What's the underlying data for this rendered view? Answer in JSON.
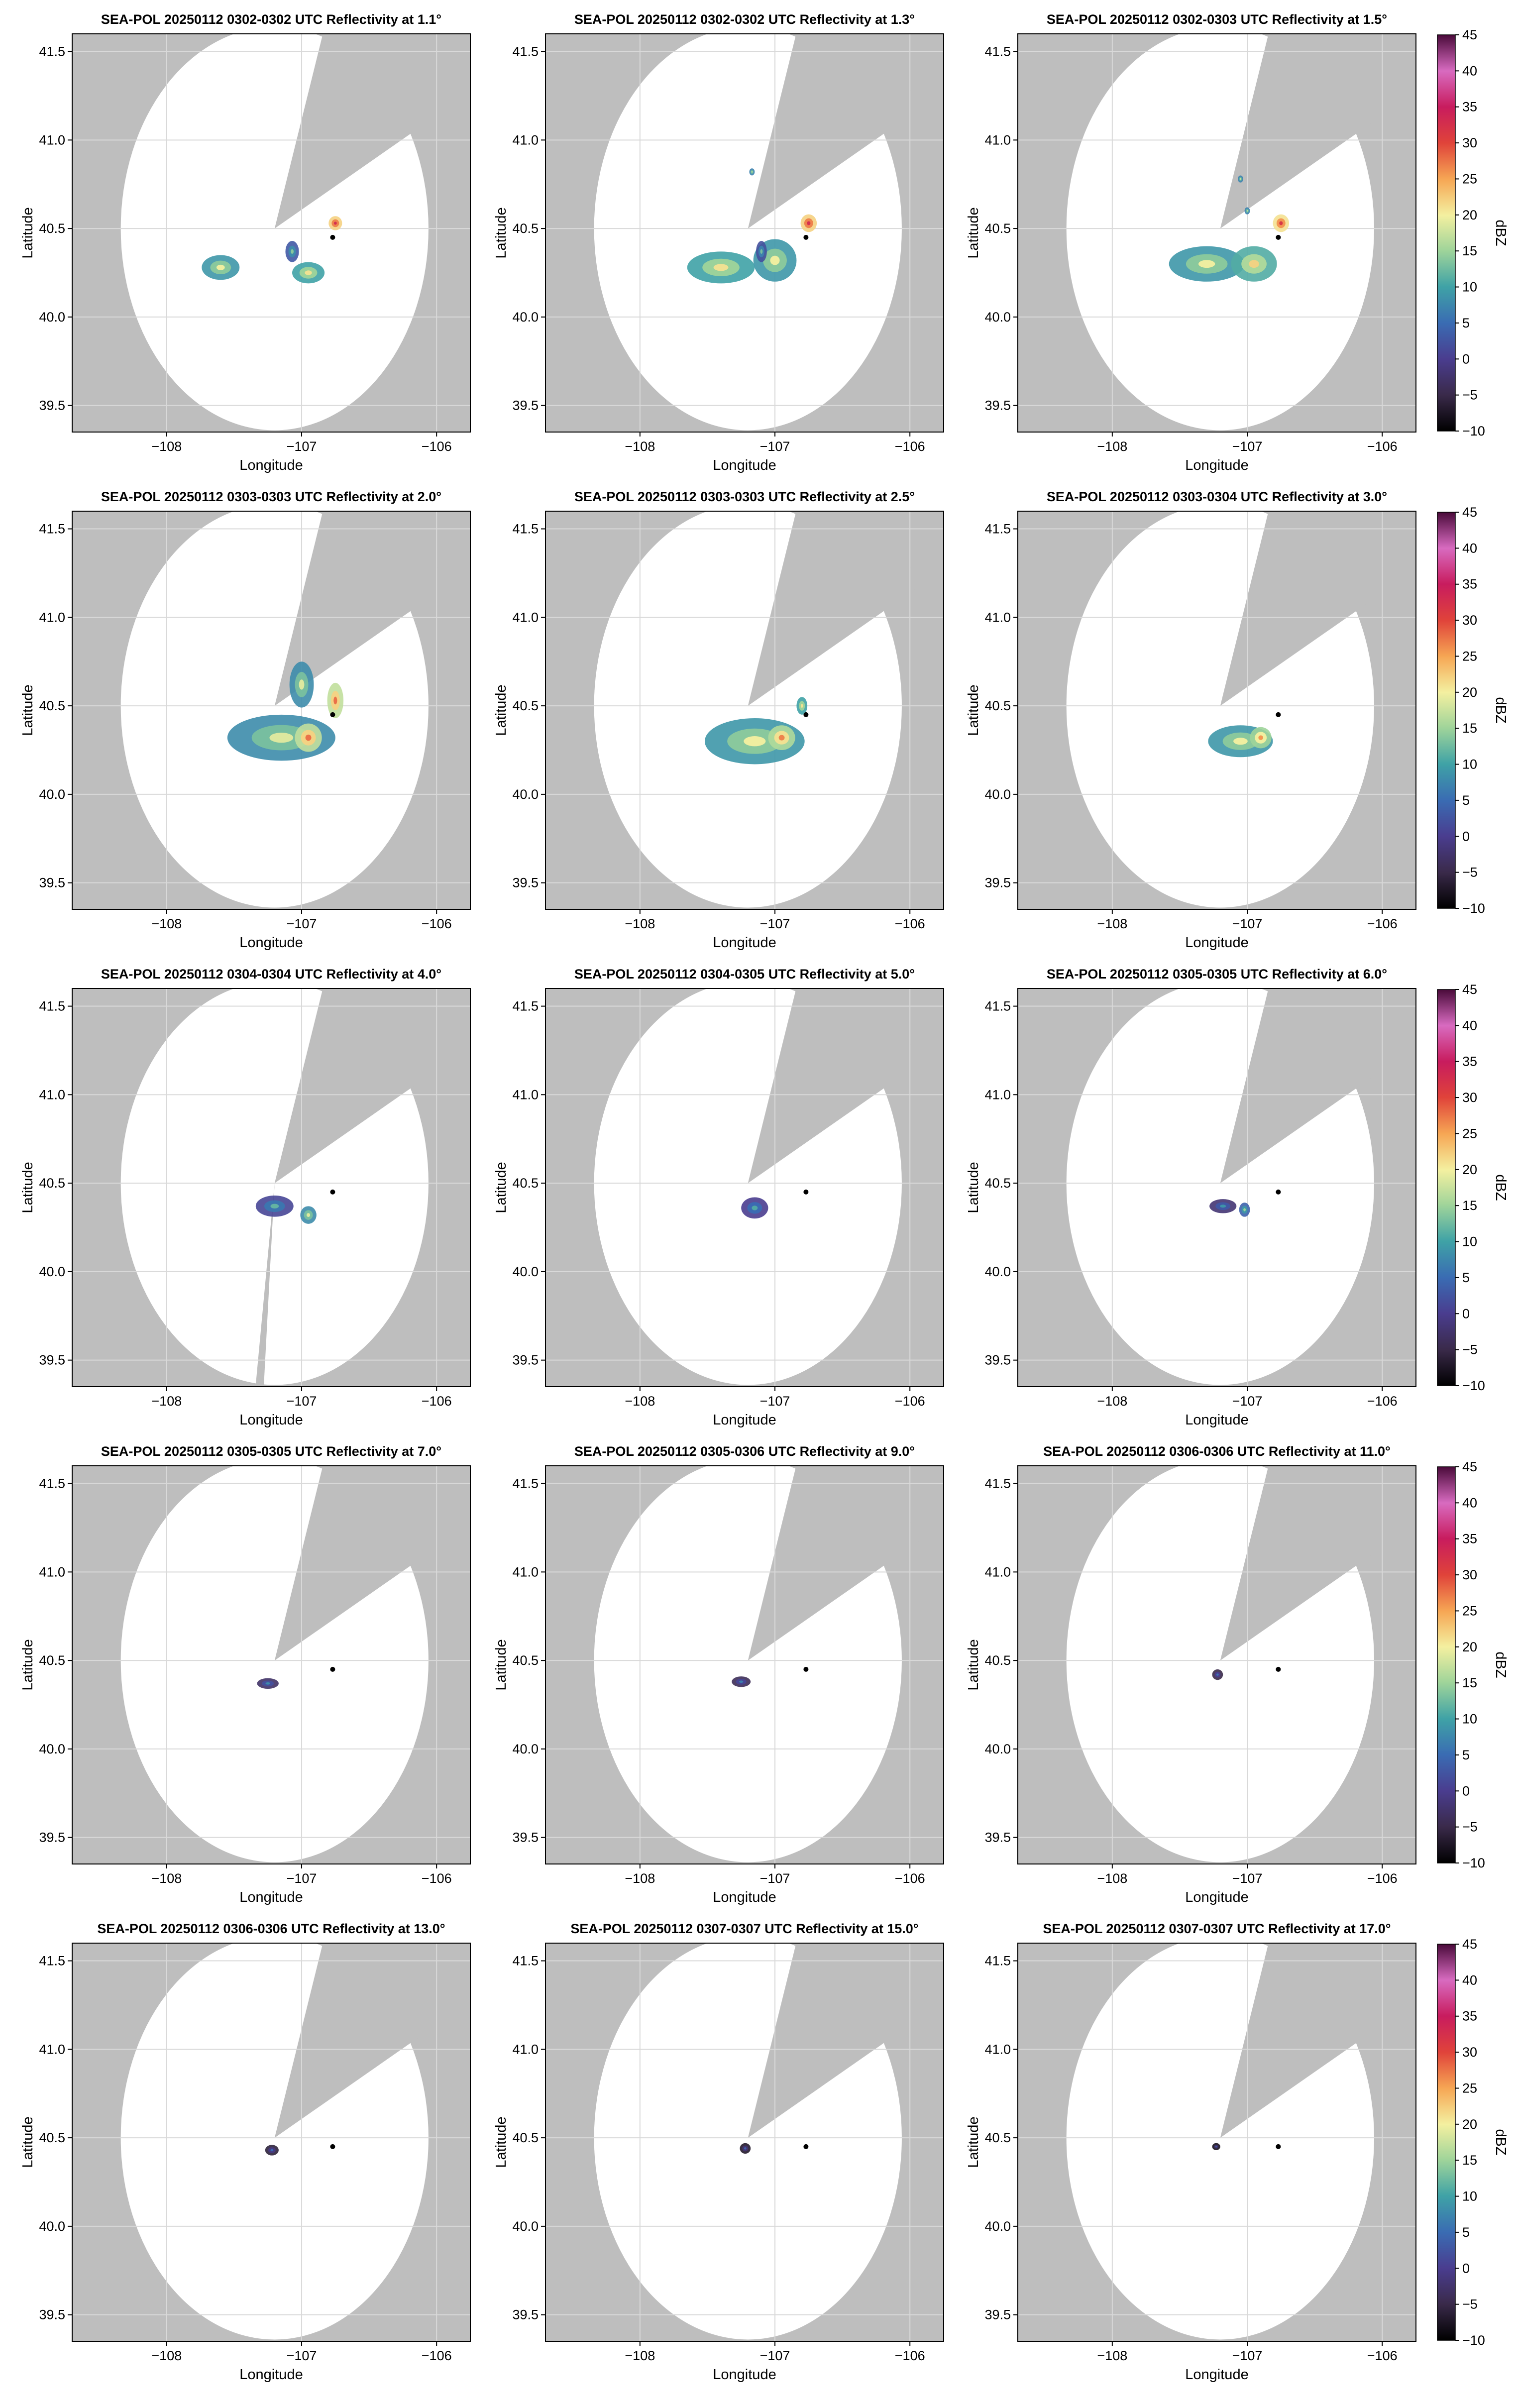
{
  "colors": {
    "background": "#bebebe",
    "coverage": "#ffffff",
    "grid": "#d9d9d9",
    "text": "#000000",
    "site_marker": "#000000"
  },
  "colorbar": {
    "label": "dBZ",
    "ticks": [
      45,
      40,
      35,
      30,
      25,
      20,
      15,
      10,
      5,
      0,
      -5,
      -10
    ],
    "range": [
      -10,
      45
    ],
    "colormap": [
      {
        "v": -10,
        "c": "#000000"
      },
      {
        "v": -5,
        "c": "#3a2a4a"
      },
      {
        "v": 0,
        "c": "#4a3d8f"
      },
      {
        "v": 5,
        "c": "#3a6cb3"
      },
      {
        "v": 10,
        "c": "#3fa2a6"
      },
      {
        "v": 15,
        "c": "#9fd49a"
      },
      {
        "v": 20,
        "c": "#f4f0a0"
      },
      {
        "v": 25,
        "c": "#f6a654"
      },
      {
        "v": 30,
        "c": "#e0433a"
      },
      {
        "v": 35,
        "c": "#c81c5e"
      },
      {
        "v": 40,
        "c": "#d86bc0"
      },
      {
        "v": 45,
        "c": "#4a0a3a"
      }
    ]
  },
  "chart_data": [
    {
      "type": "heatmap",
      "title": "SEA-POL 20250112 0302-0302 UTC Reflectivity at 1.1°",
      "xlabel": "Longitude",
      "ylabel": "Latitude",
      "xlim": [
        -108.7,
        -105.75
      ],
      "ylim": [
        39.35,
        41.6
      ],
      "xticks": [
        "−108",
        "−107",
        "−106"
      ],
      "yticks": [
        "41.5",
        "41.0",
        "40.5",
        "40.0",
        "39.5"
      ],
      "grid": true,
      "echoes": [
        {
          "lon": -107.6,
          "lat": 40.28,
          "rx": 0.14,
          "ry": 0.07,
          "dbz": 14
        },
        {
          "lon": -107.07,
          "lat": 40.37,
          "rx": 0.05,
          "ry": 0.06,
          "dbz": 8
        },
        {
          "lon": -106.95,
          "lat": 40.25,
          "rx": 0.12,
          "ry": 0.06,
          "dbz": 15
        },
        {
          "lon": -106.75,
          "lat": 40.53,
          "rx": 0.05,
          "ry": 0.04,
          "dbz": 27
        }
      ]
    },
    {
      "type": "heatmap",
      "title": "SEA-POL 20250112 0302-0302 UTC Reflectivity at 1.3°",
      "xlabel": "Longitude",
      "ylabel": "Latitude",
      "xlim": [
        -108.7,
        -105.75
      ],
      "ylim": [
        39.35,
        41.6
      ],
      "xticks": [
        "−108",
        "−107",
        "−106"
      ],
      "yticks": [
        "41.5",
        "41.0",
        "40.5",
        "40.0",
        "39.5"
      ],
      "grid": true,
      "echoes": [
        {
          "lon": -107.4,
          "lat": 40.28,
          "rx": 0.25,
          "ry": 0.09,
          "dbz": 15
        },
        {
          "lon": -107.0,
          "lat": 40.32,
          "rx": 0.16,
          "ry": 0.12,
          "dbz": 14
        },
        {
          "lon": -107.1,
          "lat": 40.37,
          "rx": 0.04,
          "ry": 0.06,
          "dbz": 7
        },
        {
          "lon": -106.75,
          "lat": 40.53,
          "rx": 0.06,
          "ry": 0.05,
          "dbz": 27
        },
        {
          "lon": -107.17,
          "lat": 40.82,
          "rx": 0.02,
          "ry": 0.02,
          "dbz": 12
        }
      ]
    },
    {
      "type": "heatmap",
      "title": "SEA-POL 20250112 0302-0303 UTC Reflectivity at 1.5°",
      "xlabel": "Longitude",
      "ylabel": "Latitude",
      "xlim": [
        -108.7,
        -105.75
      ],
      "ylim": [
        39.35,
        41.6
      ],
      "xticks": [
        "−108",
        "−107",
        "−106"
      ],
      "yticks": [
        "41.5",
        "41.0",
        "40.5",
        "40.0",
        "39.5"
      ],
      "grid": true,
      "echoes": [
        {
          "lon": -107.3,
          "lat": 40.3,
          "rx": 0.28,
          "ry": 0.1,
          "dbz": 14
        },
        {
          "lon": -106.95,
          "lat": 40.3,
          "rx": 0.17,
          "ry": 0.1,
          "dbz": 16
        },
        {
          "lon": -107.0,
          "lat": 40.6,
          "rx": 0.02,
          "ry": 0.02,
          "dbz": 12
        },
        {
          "lon": -106.75,
          "lat": 40.53,
          "rx": 0.06,
          "ry": 0.05,
          "dbz": 26
        },
        {
          "lon": -107.05,
          "lat": 40.78,
          "rx": 0.02,
          "ry": 0.02,
          "dbz": 12
        }
      ]
    },
    {
      "type": "heatmap",
      "title": "SEA-POL 20250112 0303-0303 UTC Reflectivity at 2.0°",
      "xlabel": "Longitude",
      "ylabel": "Latitude",
      "xlim": [
        -108.7,
        -105.75
      ],
      "ylim": [
        39.35,
        41.6
      ],
      "xticks": [
        "−108",
        "−107",
        "−106"
      ],
      "yticks": [
        "41.5",
        "41.0",
        "40.5",
        "40.0",
        "39.5"
      ],
      "grid": true,
      "echoes": [
        {
          "lon": -107.15,
          "lat": 40.32,
          "rx": 0.4,
          "ry": 0.13,
          "dbz": 13
        },
        {
          "lon": -107.0,
          "lat": 40.62,
          "rx": 0.09,
          "ry": 0.13,
          "dbz": 13
        },
        {
          "lon": -106.95,
          "lat": 40.32,
          "rx": 0.1,
          "ry": 0.08,
          "dbz": 22
        },
        {
          "lon": -106.75,
          "lat": 40.53,
          "rx": 0.06,
          "ry": 0.1,
          "dbz": 22
        }
      ]
    },
    {
      "type": "heatmap",
      "title": "SEA-POL 20250112 0303-0303 UTC Reflectivity at 2.5°",
      "xlabel": "Longitude",
      "ylabel": "Latitude",
      "xlim": [
        -108.7,
        -105.75
      ],
      "ylim": [
        39.35,
        41.6
      ],
      "xticks": [
        "−108",
        "−107",
        "−106"
      ],
      "yticks": [
        "41.5",
        "41.0",
        "40.5",
        "40.0",
        "39.5"
      ],
      "grid": true,
      "echoes": [
        {
          "lon": -107.15,
          "lat": 40.3,
          "rx": 0.37,
          "ry": 0.13,
          "dbz": 14
        },
        {
          "lon": -106.95,
          "lat": 40.32,
          "rx": 0.1,
          "ry": 0.07,
          "dbz": 21
        },
        {
          "lon": -106.8,
          "lat": 40.5,
          "rx": 0.04,
          "ry": 0.05,
          "dbz": 15
        }
      ]
    },
    {
      "type": "heatmap",
      "title": "SEA-POL 20250112 0303-0304 UTC Reflectivity at 3.0°",
      "xlabel": "Longitude",
      "ylabel": "Latitude",
      "xlim": [
        -108.7,
        -105.75
      ],
      "ylim": [
        39.35,
        41.6
      ],
      "xticks": [
        "−108",
        "−107",
        "−106"
      ],
      "yticks": [
        "41.5",
        "41.0",
        "40.5",
        "40.0",
        "39.5"
      ],
      "grid": true,
      "echoes": [
        {
          "lon": -107.05,
          "lat": 40.3,
          "rx": 0.24,
          "ry": 0.09,
          "dbz": 14
        },
        {
          "lon": -106.9,
          "lat": 40.32,
          "rx": 0.08,
          "ry": 0.06,
          "dbz": 20
        }
      ]
    },
    {
      "type": "heatmap",
      "title": "SEA-POL 20250112 0304-0304 UTC Reflectivity at 4.0°",
      "xlabel": "Longitude",
      "ylabel": "Latitude",
      "xlim": [
        -108.7,
        -105.75
      ],
      "ylim": [
        39.35,
        41.6
      ],
      "xticks": [
        "−108",
        "−107",
        "−106"
      ],
      "yticks": [
        "41.5",
        "41.0",
        "40.5",
        "40.0",
        "39.5"
      ],
      "grid": true,
      "echoes": [
        {
          "lon": -107.2,
          "lat": 40.37,
          "rx": 0.14,
          "ry": 0.06,
          "dbz": 6
        },
        {
          "lon": -106.95,
          "lat": 40.32,
          "rx": 0.06,
          "ry": 0.05,
          "dbz": 13
        }
      ]
    },
    {
      "type": "heatmap",
      "title": "SEA-POL 20250112 0304-0305 UTC Reflectivity at 5.0°",
      "xlabel": "Longitude",
      "ylabel": "Latitude",
      "xlim": [
        -108.7,
        -105.75
      ],
      "ylim": [
        39.35,
        41.6
      ],
      "xticks": [
        "−108",
        "−107",
        "−106"
      ],
      "yticks": [
        "41.5",
        "41.0",
        "40.5",
        "40.0",
        "39.5"
      ],
      "grid": true,
      "echoes": [
        {
          "lon": -107.15,
          "lat": 40.36,
          "rx": 0.1,
          "ry": 0.06,
          "dbz": 5
        }
      ]
    },
    {
      "type": "heatmap",
      "title": "SEA-POL 20250112 0305-0305 UTC Reflectivity at 6.0°",
      "xlabel": "Longitude",
      "ylabel": "Latitude",
      "xlim": [
        -108.7,
        -105.75
      ],
      "ylim": [
        39.35,
        41.6
      ],
      "xticks": [
        "−108",
        "−107",
        "−106"
      ],
      "yticks": [
        "41.5",
        "41.0",
        "40.5",
        "40.0",
        "39.5"
      ],
      "grid": true,
      "echoes": [
        {
          "lon": -107.18,
          "lat": 40.37,
          "rx": 0.1,
          "ry": 0.04,
          "dbz": 3
        },
        {
          "lon": -107.02,
          "lat": 40.35,
          "rx": 0.04,
          "ry": 0.04,
          "dbz": 9
        }
      ]
    },
    {
      "type": "heatmap",
      "title": "SEA-POL 20250112 0305-0305 UTC Reflectivity at 7.0°",
      "xlabel": "Longitude",
      "ylabel": "Latitude",
      "xlim": [
        -108.7,
        -105.75
      ],
      "ylim": [
        39.35,
        41.6
      ],
      "xticks": [
        "−108",
        "−107",
        "−106"
      ],
      "yticks": [
        "41.5",
        "41.0",
        "40.5",
        "40.0",
        "39.5"
      ],
      "grid": true,
      "echoes": [
        {
          "lon": -107.25,
          "lat": 40.37,
          "rx": 0.08,
          "ry": 0.03,
          "dbz": 2
        }
      ]
    },
    {
      "type": "heatmap",
      "title": "SEA-POL 20250112 0305-0306 UTC Reflectivity at 9.0°",
      "xlabel": "Longitude",
      "ylabel": "Latitude",
      "xlim": [
        -108.7,
        -105.75
      ],
      "ylim": [
        39.35,
        41.6
      ],
      "xticks": [
        "−108",
        "−107",
        "−106"
      ],
      "yticks": [
        "41.5",
        "41.0",
        "40.5",
        "40.0",
        "39.5"
      ],
      "grid": true,
      "echoes": [
        {
          "lon": -107.25,
          "lat": 40.38,
          "rx": 0.07,
          "ry": 0.03,
          "dbz": 1
        }
      ]
    },
    {
      "type": "heatmap",
      "title": "SEA-POL 20250112 0306-0306 UTC Reflectivity at 11.0°",
      "xlabel": "Longitude",
      "ylabel": "Latitude",
      "xlim": [
        -108.7,
        -105.75
      ],
      "ylim": [
        39.35,
        41.6
      ],
      "xticks": [
        "−108",
        "−107",
        "−106"
      ],
      "yticks": [
        "41.5",
        "41.0",
        "40.5",
        "40.0",
        "39.5"
      ],
      "grid": true,
      "echoes": [
        {
          "lon": -107.22,
          "lat": 40.42,
          "rx": 0.04,
          "ry": 0.03,
          "dbz": 0
        }
      ]
    },
    {
      "type": "heatmap",
      "title": "SEA-POL 20250112 0306-0306 UTC Reflectivity at 13.0°",
      "xlabel": "Longitude",
      "ylabel": "Latitude",
      "xlim": [
        -108.7,
        -105.75
      ],
      "ylim": [
        39.35,
        41.6
      ],
      "xticks": [
        "−108",
        "−107",
        "−106"
      ],
      "yticks": [
        "41.5",
        "41.0",
        "40.5",
        "40.0",
        "39.5"
      ],
      "grid": true,
      "echoes": [
        {
          "lon": -107.22,
          "lat": 40.43,
          "rx": 0.05,
          "ry": 0.03,
          "dbz": -1
        }
      ]
    },
    {
      "type": "heatmap",
      "title": "SEA-POL 20250112 0307-0307 UTC Reflectivity at 15.0°",
      "xlabel": "Longitude",
      "ylabel": "Latitude",
      "xlim": [
        -108.7,
        -105.75
      ],
      "ylim": [
        39.35,
        41.6
      ],
      "xticks": [
        "−108",
        "−107",
        "−106"
      ],
      "yticks": [
        "41.5",
        "41.0",
        "40.5",
        "40.0",
        "39.5"
      ],
      "grid": true,
      "echoes": [
        {
          "lon": -107.22,
          "lat": 40.44,
          "rx": 0.04,
          "ry": 0.03,
          "dbz": -2
        }
      ]
    },
    {
      "type": "heatmap",
      "title": "SEA-POL 20250112 0307-0307 UTC Reflectivity at 17.0°",
      "xlabel": "Longitude",
      "ylabel": "Latitude",
      "xlim": [
        -108.7,
        -105.75
      ],
      "ylim": [
        39.35,
        41.6
      ],
      "xticks": [
        "−108",
        "−107",
        "−106"
      ],
      "yticks": [
        "41.5",
        "41.0",
        "40.5",
        "40.0",
        "39.5"
      ],
      "grid": true,
      "echoes": [
        {
          "lon": -107.23,
          "lat": 40.45,
          "rx": 0.03,
          "ry": 0.02,
          "dbz": -3
        }
      ]
    }
  ]
}
